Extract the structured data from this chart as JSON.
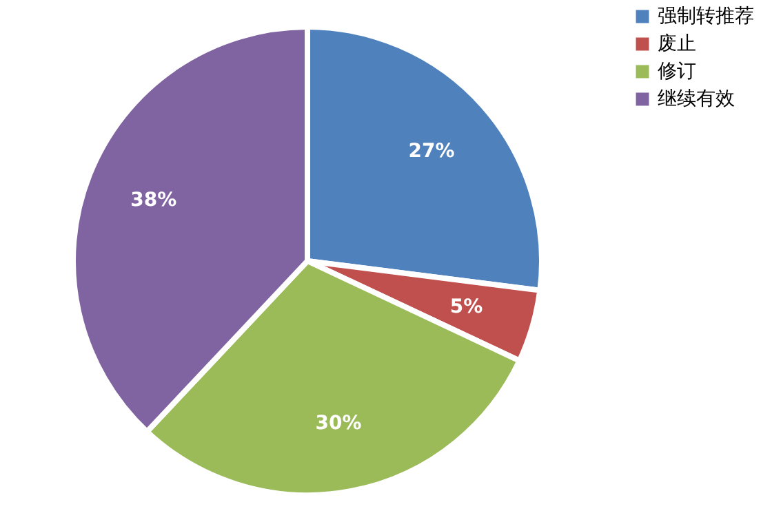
{
  "chart_data": {
    "type": "pie",
    "categories": [
      "强制转推荐",
      "废止",
      "修订",
      "继续有效"
    ],
    "values": [
      27,
      5,
      30,
      38
    ],
    "value_labels": [
      "27%",
      "5%",
      "30%",
      "38%"
    ],
    "colors": [
      "#4f81bd",
      "#c0504d",
      "#9bbb59",
      "#8064a2"
    ],
    "legend": "right"
  }
}
